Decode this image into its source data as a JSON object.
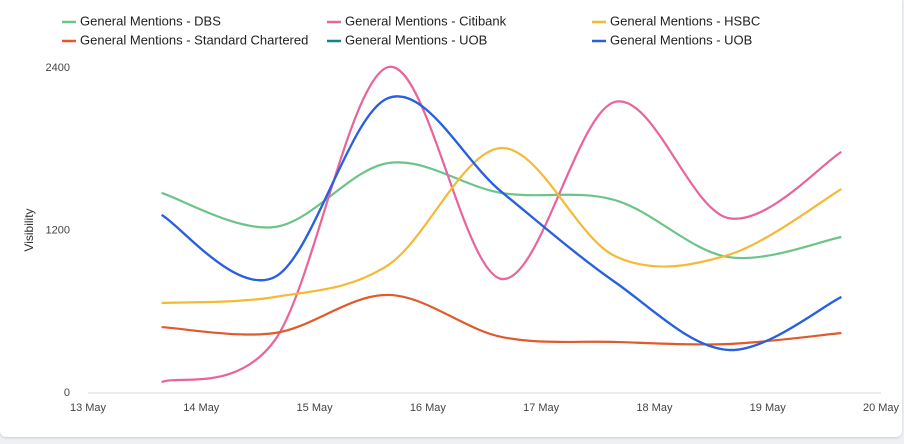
{
  "chart_data": {
    "type": "line",
    "ylabel": "Visibility",
    "x": [
      13.65,
      14.65,
      15.65,
      16.65,
      17.65,
      18.65,
      19.65
    ],
    "xlim": [
      13,
      20
    ],
    "xticks": [
      {
        "value": 13,
        "label": "13 May"
      },
      {
        "value": 14,
        "label": "14 May"
      },
      {
        "value": 15,
        "label": "15 May"
      },
      {
        "value": 16,
        "label": "16 May"
      },
      {
        "value": 17,
        "label": "17 May"
      },
      {
        "value": 18,
        "label": "18 May"
      },
      {
        "value": 19,
        "label": "19 May"
      },
      {
        "value": 20,
        "label": "20 May"
      }
    ],
    "ylim": [
      0,
      2400
    ],
    "yticks": [
      0,
      1200,
      2400
    ],
    "smooth": true,
    "series": [
      {
        "name": "General Mentions - DBS",
        "color": "#6cc489",
        "values": [
          1477,
          1226,
          1698,
          1477,
          1425,
          1004,
          1152
        ]
      },
      {
        "name": "General Mentions - Citibank",
        "color": "#e8649c",
        "values": [
          81,
          391,
          2407,
          842,
          2149,
          1292,
          1780
        ]
      },
      {
        "name": "General Mentions - HSBC",
        "color": "#f5b935",
        "values": [
          665,
          709,
          945,
          1809,
          1012,
          1019,
          1506
        ]
      },
      {
        "name": "General Mentions - Standard Chartered",
        "color": "#e05a2c",
        "values": [
          487,
          443,
          724,
          414,
          377,
          362,
          443
        ]
      },
      {
        "name": "General Mentions - UOB",
        "color": "#17808a",
        "values": [
          1315,
          857,
          2178,
          1485,
          820,
          318,
          709
        ]
      },
      {
        "name": "General Mentions - UOB",
        "color": "#2a5ee6",
        "values": [
          1315,
          857,
          2178,
          1485,
          820,
          318,
          709
        ]
      }
    ]
  }
}
